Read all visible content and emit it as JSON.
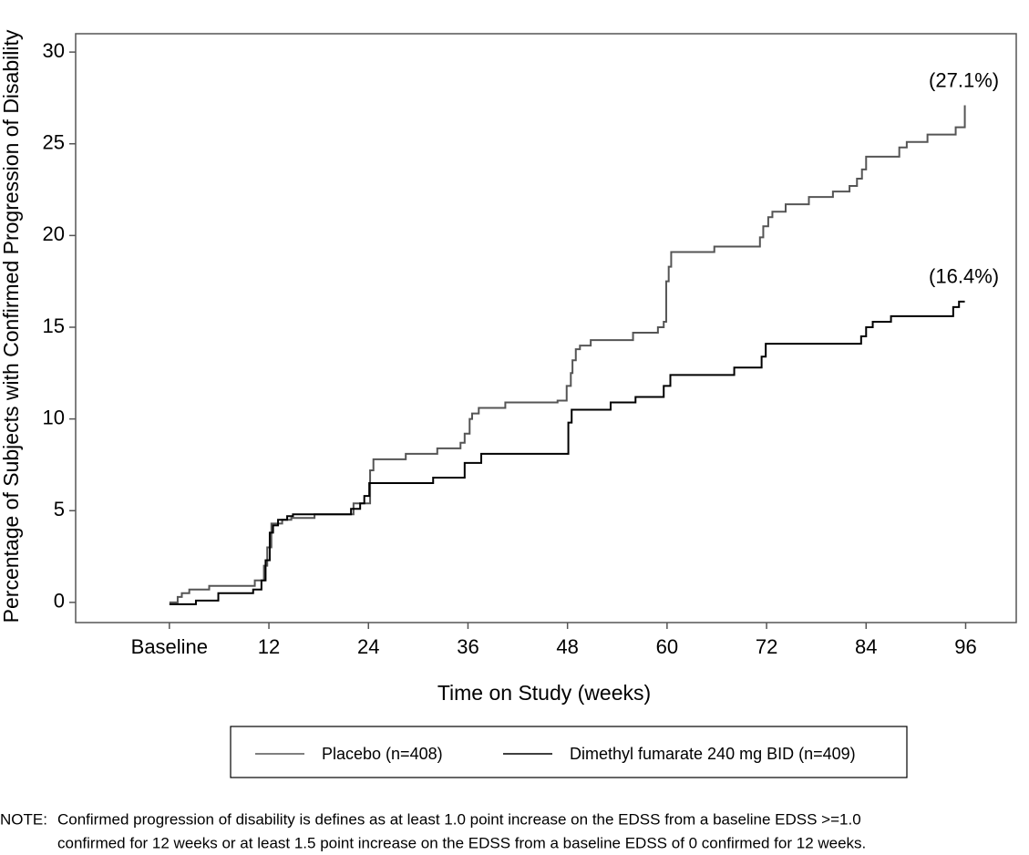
{
  "chart_data": {
    "type": "step",
    "xlabel": "Time on Study (weeks)",
    "ylabel": "Percentage of Subjects with Confirmed Progression of Disability",
    "xlim": [
      -11.3,
      102.1
    ],
    "ylim": [
      -1.1,
      31
    ],
    "xticks": [
      {
        "value": 0,
        "label": "Baseline"
      },
      12,
      24,
      36,
      48,
      60,
      72,
      84,
      96
    ],
    "yticks": [
      0,
      5,
      10,
      15,
      20,
      25,
      30
    ],
    "grid": false,
    "annotations": [
      "(27.1%)",
      "(16.4%)"
    ],
    "series": [
      {
        "name": "Placebo (n=408)",
        "color": "#555555",
        "x": [
          0,
          1.0,
          1.5,
          2.4,
          4.8,
          10.3,
          11.4,
          11.8,
          12.3,
          13.6,
          14.7,
          17.5,
          22.2,
          24.2,
          24.6,
          28.5,
          32.3,
          35.1,
          35.6,
          36.2,
          36.5,
          37.3,
          40.5,
          46.8,
          47.9,
          48.4,
          48.6,
          49.0,
          49.5,
          50.8,
          55.9,
          58.9,
          59.6,
          59.9,
          60.2,
          60.5,
          65.7,
          71.2,
          71.6,
          72.2,
          72.7,
          74.3,
          77.1,
          80.0,
          82.0,
          82.9,
          83.5,
          84.0,
          88.0,
          88.9,
          91.4,
          94.8,
          95.9
        ],
        "values": [
          0,
          0.3,
          0.5,
          0.7,
          0.9,
          1.2,
          2,
          3,
          4.3,
          4.5,
          4.6,
          4.8,
          5.4,
          7.2,
          7.8,
          8.1,
          8.4,
          8.7,
          9.2,
          10,
          10.3,
          10.6,
          10.9,
          11,
          11.8,
          12.5,
          13.2,
          13.8,
          14,
          14.3,
          14.7,
          15,
          15.3,
          17.5,
          18.3,
          19.1,
          19.4,
          19.9,
          20.5,
          21,
          21.3,
          21.7,
          22.1,
          22.4,
          22.7,
          23.1,
          23.6,
          24.3,
          24.8,
          25.1,
          25.5,
          25.9,
          27.1
        ]
      },
      {
        "name": "Dimethyl fumarate 240 mg BID (n=409)",
        "color": "#000000",
        "x": [
          0,
          3.2,
          5.9,
          10.1,
          11.1,
          11.6,
          12.1,
          12.5,
          13.1,
          14.2,
          14.9,
          21.9,
          23.0,
          23.5,
          24.1,
          31.8,
          35.6,
          37.6,
          48.1,
          48.5,
          53.2,
          56.2,
          59.6,
          60.4,
          68.1,
          71.4,
          71.9,
          83.4,
          84.0,
          84.8,
          87.0,
          94.5,
          95.2,
          95.9
        ],
        "values": [
          -0.1,
          0.1,
          0.5,
          0.7,
          1.2,
          2.3,
          3.8,
          4.2,
          4.5,
          4.7,
          4.8,
          5.1,
          5.4,
          5.8,
          6.5,
          6.8,
          7.6,
          8.1,
          9.8,
          10.5,
          10.9,
          11.2,
          11.8,
          12.4,
          12.8,
          13.4,
          14.1,
          14.5,
          15.0,
          15.3,
          15.6,
          16.1,
          16.4,
          16.4
        ]
      }
    ]
  },
  "footnote": {
    "label": "NOTE:",
    "lines": [
      "Confirmed progression of disability is defines as at least 1.0 point increase on the EDSS from a baseline EDSS >=1.0",
      "confirmed for 12 weeks or at least 1.5 point increase on the EDSS from a baseline EDSS of 0 confirmed for 12 weeks."
    ]
  }
}
